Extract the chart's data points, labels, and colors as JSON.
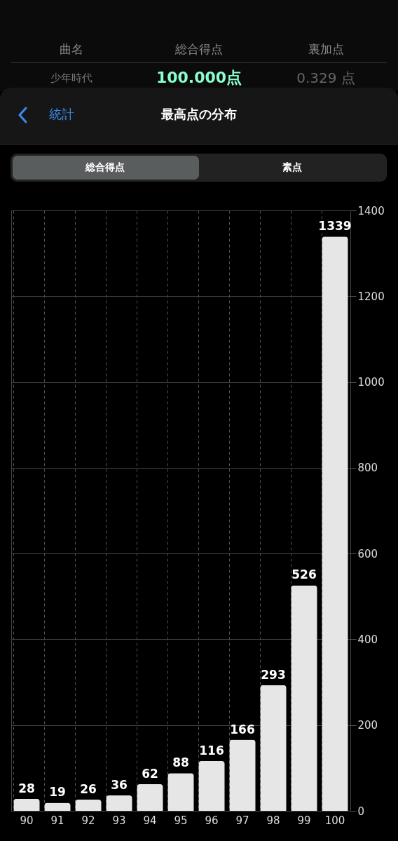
{
  "chart_data": {
    "type": "bar",
    "title": "最高点の分布",
    "categories": [
      "90",
      "91",
      "92",
      "93",
      "94",
      "95",
      "96",
      "97",
      "98",
      "99",
      "100"
    ],
    "values": [
      28,
      19,
      26,
      36,
      62,
      88,
      116,
      166,
      293,
      526,
      1339
    ],
    "color": "#e6e6e6",
    "ylim": [
      0,
      1400
    ],
    "yticks": [
      0,
      200,
      400,
      600,
      800,
      1000,
      1200,
      1400
    ],
    "grid": true,
    "data_labels": true,
    "annotations": [
      "曲名",
      "総合得点",
      "裏加点",
      "少年時代",
      "100.000点",
      "0.329 点",
      "統計",
      "総合得点",
      "素点"
    ]
  }
}
